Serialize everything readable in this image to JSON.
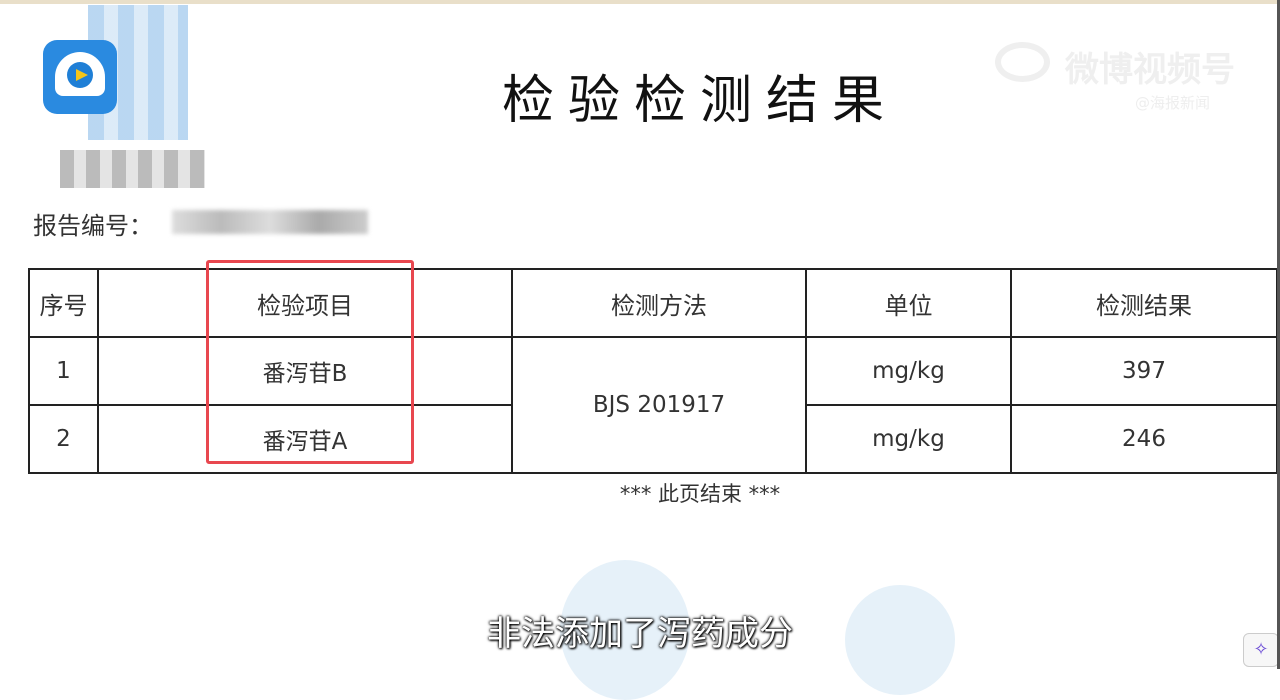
{
  "document": {
    "title": "检验检测结果",
    "report_number_label": "报告编号：",
    "table": {
      "headers": [
        "序号",
        "检验项目",
        "检测方法",
        "单位",
        "检测结果"
      ],
      "rows": [
        {
          "index": "1",
          "item": "番泻苷B",
          "method": "BJS 201917",
          "unit": "mg/kg",
          "result": "397"
        },
        {
          "index": "2",
          "item": "番泻苷A",
          "method": "BJS 201917",
          "unit": "mg/kg",
          "result": "246"
        }
      ]
    },
    "end_note": "*** 此页结束 ***",
    "highlight_color": "#e8474f"
  },
  "watermark": {
    "text": "微博视频号",
    "handle": "@海报新闻"
  },
  "subtitle": "非法添加了泻药成分",
  "icons": {
    "ai_button": "sparkle-icon",
    "logo": "news-app-logo"
  }
}
